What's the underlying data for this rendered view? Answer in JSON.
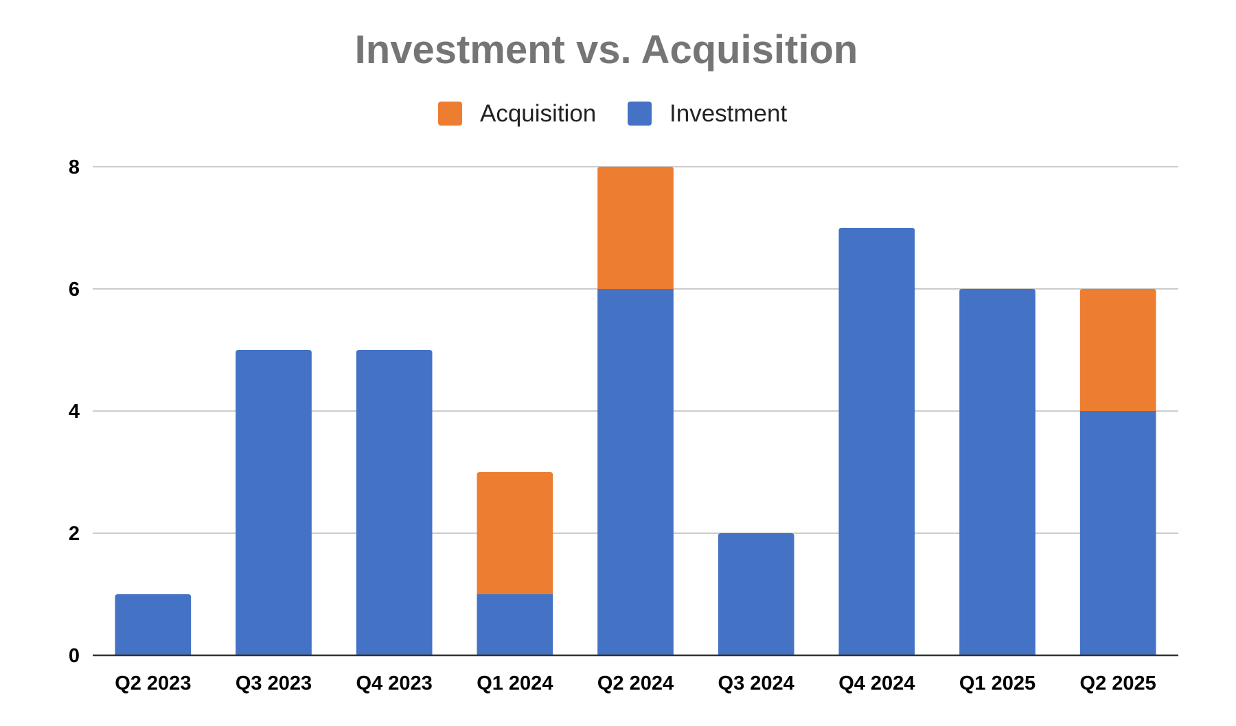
{
  "chart_data": {
    "type": "bar",
    "stacked": true,
    "title": "Investment vs. Acquisition",
    "xlabel": "",
    "ylabel": "",
    "categories": [
      "Q2 2023",
      "Q3 2023",
      "Q4 2023",
      "Q1 2024",
      "Q2 2024",
      "Q3 2024",
      "Q4 2024",
      "Q1 2025",
      "Q2 2025"
    ],
    "series": [
      {
        "name": "Investment",
        "color": "#4472c4",
        "values": [
          1,
          5,
          5,
          1,
          6,
          2,
          7,
          6,
          4
        ]
      },
      {
        "name": "Acquisition",
        "color": "#ed7d31",
        "values": [
          0,
          0,
          0,
          2,
          2,
          0,
          0,
          0,
          2
        ]
      }
    ],
    "legend_order": [
      "Acquisition",
      "Investment"
    ],
    "legend_position": "top",
    "ylim": [
      0,
      8
    ],
    "yticks": [
      0,
      2,
      4,
      6,
      8
    ],
    "grid": true
  }
}
